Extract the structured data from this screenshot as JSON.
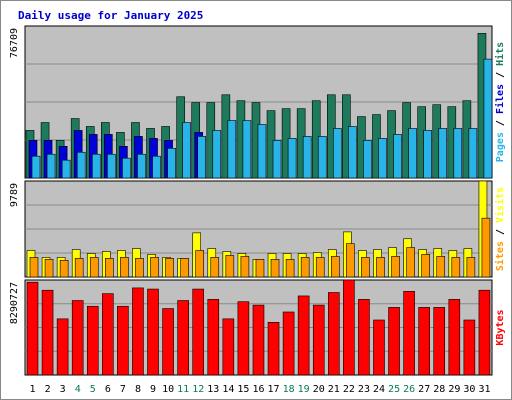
{
  "chart_data": {
    "type": "bar",
    "title": "Daily usage for January 2025",
    "background": "#c0c0c0",
    "grid": true,
    "days": [
      "1",
      "2",
      "3",
      "4",
      "5",
      "6",
      "7",
      "8",
      "9",
      "10",
      "11",
      "12",
      "13",
      "14",
      "15",
      "16",
      "17",
      "18",
      "19",
      "20",
      "21",
      "22",
      "23",
      "24",
      "25",
      "26",
      "27",
      "28",
      "29",
      "30",
      "31"
    ],
    "weekend_days": [
      "4",
      "5",
      "11",
      "12",
      "18",
      "19",
      "25",
      "26"
    ],
    "day_colors": {
      "weekday": "#000000",
      "weekend": "#0b7a50"
    },
    "panels": [
      {
        "name": "pages-files-hits",
        "ylim": [
          0,
          76709
        ],
        "max_label": "76709",
        "series": [
          {
            "name": "Hits",
            "color": "#1d7a5c",
            "values": [
              24000,
              28000,
              19000,
              30000,
              26000,
              28000,
              23000,
              28000,
              25000,
              26000,
              41000,
              38000,
              38000,
              42000,
              39000,
              38000,
              34000,
              35000,
              35000,
              39000,
              42000,
              42000,
              31000,
              32000,
              34000,
              38000,
              36000,
              37000,
              36000,
              39000,
              73000
            ]
          },
          {
            "name": "Files",
            "color": "#0000d8",
            "values": [
              19000,
              19000,
              16000,
              24000,
              22000,
              22000,
              16000,
              21000,
              20000,
              19000,
              null,
              23000,
              null,
              null,
              null,
              null,
              null,
              null,
              null,
              null,
              null,
              null,
              null,
              null,
              null,
              null,
              null,
              null,
              null,
              null,
              null
            ]
          },
          {
            "name": "Pages",
            "color": "#28b4e8",
            "values": [
              11000,
              12000,
              9000,
              13000,
              12000,
              12000,
              10000,
              12000,
              11000,
              15000,
              28000,
              21000,
              24000,
              29000,
              29000,
              27000,
              19000,
              20000,
              21000,
              21000,
              25000,
              26000,
              19000,
              20000,
              22000,
              25000,
              24000,
              25000,
              25000,
              25000,
              60000
            ]
          }
        ],
        "axis_label": [
          {
            "text": "Pages",
            "color": "#28b4e8"
          },
          {
            "text": " / ",
            "color": "#000000"
          },
          {
            "text": "Files",
            "color": "#0000d8"
          },
          {
            "text": " / ",
            "color": "#000000"
          },
          {
            "text": "Hits",
            "color": "#1d7a5c"
          }
        ]
      },
      {
        "name": "sites-visits",
        "ylim": [
          0,
          9789
        ],
        "max_label": "9789",
        "series": [
          {
            "name": "Visits",
            "color": "#ffff00",
            "values": [
              2700,
              2000,
              2000,
              2800,
              2400,
              2600,
              2700,
              2900,
              2300,
              2000,
              1900,
              4500,
              2900,
              2600,
              2400,
              1800,
              2400,
              2400,
              2400,
              2500,
              2800,
              4600,
              2700,
              2800,
              3000,
              3900,
              2800,
              2900,
              2700,
              2900,
              9789
            ]
          },
          {
            "name": "Sites",
            "color": "#ff9900",
            "values": [
              2000,
              1800,
              1700,
              1900,
              2000,
              1900,
              2000,
              1900,
              2000,
              1900,
              1900,
              2700,
              2000,
              2200,
              2100,
              1800,
              1800,
              1800,
              2000,
              2000,
              2100,
              3400,
              2000,
              2000,
              2100,
              3000,
              2300,
              2100,
              2000,
              2000,
              6000
            ]
          }
        ],
        "axis_label": [
          {
            "text": "Sites",
            "color": "#ff9900"
          },
          {
            "text": " / ",
            "color": "#000000"
          },
          {
            "text": "Visits",
            "color": "#ffff00"
          }
        ]
      },
      {
        "name": "kbytes",
        "ylim": [
          0,
          8290727
        ],
        "max_label": "8290727",
        "series": [
          {
            "name": "KBytes",
            "color": "#ff0000",
            "values": [
              8100000,
              7400000,
              4900000,
              6500000,
              6000000,
              7100000,
              6000000,
              7600000,
              7500000,
              5800000,
              6500000,
              7500000,
              6600000,
              4900000,
              6400000,
              6100000,
              4600000,
              5500000,
              6900000,
              6100000,
              7200000,
              8290727,
              6600000,
              4800000,
              5900000,
              7300000,
              5900000,
              5900000,
              6600000,
              4800000,
              7400000
            ]
          }
        ],
        "axis_label": [
          {
            "text": "KBytes",
            "color": "#ff0000"
          }
        ]
      }
    ]
  }
}
